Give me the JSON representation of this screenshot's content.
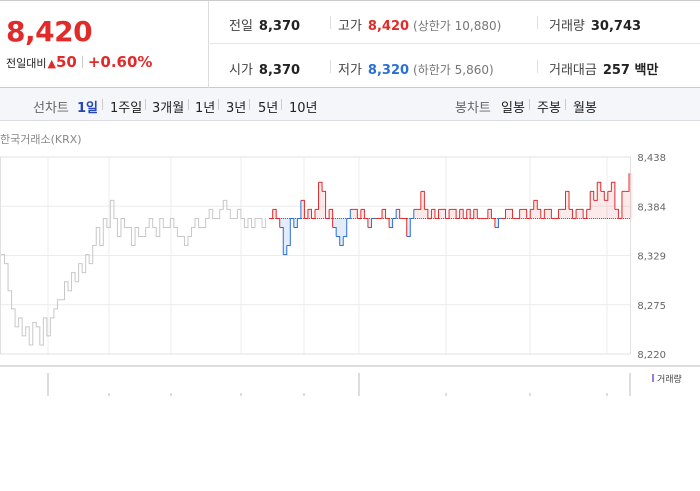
{
  "quote": {
    "price": "8,420",
    "change_label": "전일대비",
    "change_arrow": "▲",
    "change_value": "50",
    "change_rate": "+0.60%",
    "up_color": "#e12b2b",
    "down_color": "#2a6fd6"
  },
  "stats": {
    "prev_close": {
      "label": "전일",
      "value": "8,370"
    },
    "open": {
      "label": "시가",
      "value": "8,370"
    },
    "high": {
      "label": "고가",
      "value": "8,420",
      "extra": "(상한가 10,880)"
    },
    "low": {
      "label": "저가",
      "value": "8,320",
      "extra": "(하한가 5,860)"
    },
    "volume": {
      "label": "거래량",
      "value": "30,743"
    },
    "turnover": {
      "label": "거래대금",
      "value": "257 백만"
    }
  },
  "tabs": {
    "line_chart_label": "선차트",
    "periods": [
      "1일",
      "1주일",
      "3개월",
      "1년",
      "3년",
      "5년",
      "10년"
    ],
    "active_period": "1일",
    "candle_chart_label": "봉차트",
    "candles": [
      "일봉",
      "주봉",
      "월봉"
    ]
  },
  "chart": {
    "exchange_label": "한국거래소(KRX)",
    "volume_legend": "거래량"
  },
  "chart_data": {
    "type": "line",
    "title": "",
    "xlabel": "",
    "ylabel": "",
    "ylim": [
      8220,
      8438
    ],
    "yticks": [
      "8,438",
      "8,384",
      "8,329",
      "8,275",
      "8,220"
    ],
    "baseline": 8370,
    "grid": true,
    "series": [
      {
        "role": "previous-session",
        "color": "#c8c8c8",
        "values": [
          8330,
          8320,
          8290,
          8270,
          8250,
          8260,
          8240,
          8250,
          8230,
          8255,
          8250,
          8230,
          8260,
          8240,
          8260,
          8270,
          8280,
          8280,
          8300,
          8290,
          8310,
          8300,
          8320,
          8310,
          8330,
          8320,
          8340,
          8360,
          8340,
          8370,
          8360,
          8390,
          8370,
          8350,
          8370,
          8360,
          8360,
          8340,
          8360,
          8350,
          8350,
          8360,
          8370,
          8360,
          8350,
          8370,
          8360,
          8360,
          8370,
          8360,
          8350,
          8350,
          8340,
          8350,
          8360,
          8370,
          8360,
          8360,
          8370,
          8380,
          8370,
          8370,
          8380,
          8390,
          8380,
          8370,
          8370,
          8380,
          8370,
          8360,
          8370,
          8360,
          8370,
          8370,
          8360,
          8370
        ]
      },
      {
        "role": "today",
        "values": [
          8370,
          8380,
          8370,
          8360,
          8330,
          8340,
          8370,
          8360,
          8370,
          8390,
          8370,
          8380,
          8370,
          8380,
          8410,
          8400,
          8370,
          8380,
          8360,
          8350,
          8340,
          8350,
          8370,
          8380,
          8380,
          8370,
          8380,
          8370,
          8360,
          8370,
          8370,
          8370,
          8380,
          8370,
          8360,
          8370,
          8380,
          8370,
          8370,
          8350,
          8370,
          8380,
          8380,
          8400,
          8380,
          8370,
          8380,
          8370,
          8380,
          8380,
          8370,
          8380,
          8380,
          8370,
          8380,
          8370,
          8380,
          8370,
          8380,
          8370,
          8370,
          8370,
          8380,
          8370,
          8360,
          8370,
          8370,
          8380,
          8380,
          8370,
          8370,
          8380,
          8380,
          8370,
          8380,
          8390,
          8380,
          8370,
          8380,
          8380,
          8370,
          8370,
          8380,
          8380,
          8400,
          8380,
          8370,
          8380,
          8380,
          8370,
          8380,
          8400,
          8390,
          8410,
          8400,
          8390,
          8400,
          8410,
          8380,
          8370,
          8400,
          8400,
          8420
        ]
      }
    ]
  }
}
